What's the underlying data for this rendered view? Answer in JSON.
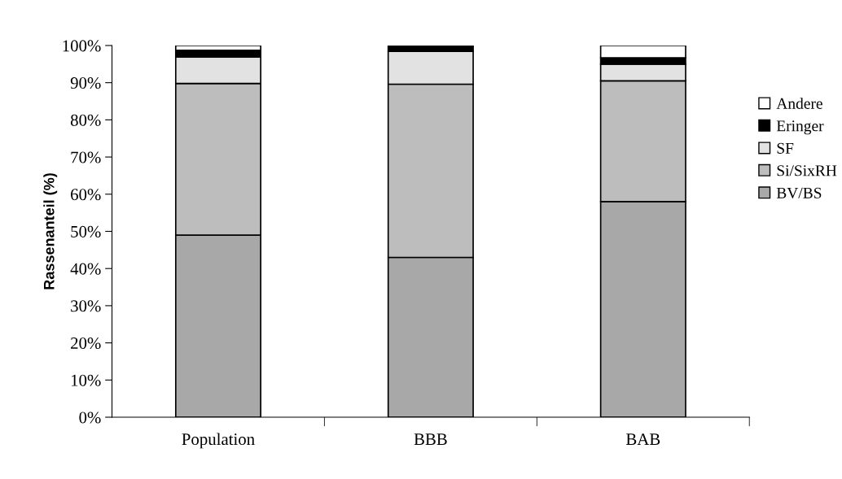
{
  "chart_data": {
    "type": "bar",
    "stacked": true,
    "ylabel": "Rassenanteil (%)",
    "categories": [
      "Population",
      "BBB",
      "BAB"
    ],
    "series": [
      {
        "name": "BV/BS",
        "color": "#a8a8a8",
        "values": [
          49,
          43,
          58
        ]
      },
      {
        "name": "Si/SixRH",
        "color": "#bdbdbd",
        "values": [
          40.8,
          46.6,
          32.5
        ]
      },
      {
        "name": "SF",
        "color": "#e2e2e2",
        "values": [
          7.1,
          8.8,
          4.5
        ]
      },
      {
        "name": "Eringer",
        "color": "#000000",
        "values": [
          1.8,
          1.6,
          1.7
        ]
      },
      {
        "name": "Andere",
        "color": "#ffffff",
        "values": [
          1.3,
          null,
          3.3
        ]
      }
    ],
    "ylim": [
      0,
      100
    ],
    "yticks": [
      {
        "value": 0,
        "label": "0%"
      },
      {
        "value": 10,
        "label": "10%"
      },
      {
        "value": 20,
        "label": "20%"
      },
      {
        "value": 30,
        "label": "30%"
      },
      {
        "value": 40,
        "label": "40%"
      },
      {
        "value": 50,
        "label": "50%"
      },
      {
        "value": 60,
        "label": "60%"
      },
      {
        "value": 70,
        "label": "70%"
      },
      {
        "value": 80,
        "label": "80%"
      },
      {
        "value": 90,
        "label": "90%"
      },
      {
        "value": 100,
        "label": "100%"
      }
    ],
    "grid": false,
    "legend": "right"
  }
}
